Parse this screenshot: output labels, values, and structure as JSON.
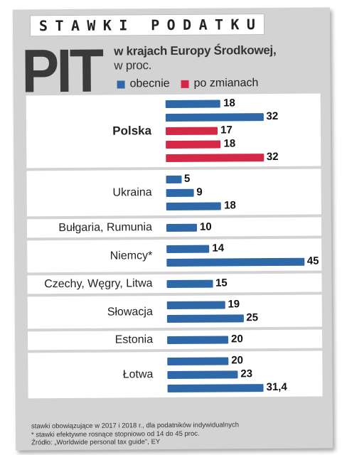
{
  "kicker": "STAWKI PODATKU",
  "kicker_words": [
    "S",
    "T",
    "A",
    "W",
    "K",
    "I",
    "",
    "P",
    "O",
    "D",
    "A",
    "T",
    "K",
    "U"
  ],
  "header": {
    "big_title": "PIT",
    "subtitle_bold": "w krajach Europy Środkowej,",
    "subtitle_normal": "w proc."
  },
  "legend": [
    {
      "label": "obecnie",
      "color": "#2e68a8"
    },
    {
      "label": "po zmianach",
      "color": "#d72746"
    }
  ],
  "chart_data": {
    "type": "bar",
    "orientation": "horizontal",
    "title": "PIT w krajach Europy Środkowej, w proc.",
    "groups": [
      {
        "label": "Polska",
        "bold": true,
        "bars": [
          {
            "value": 18,
            "label": "18",
            "series": "obecnie"
          },
          {
            "value": 32,
            "label": "32",
            "series": "obecnie"
          },
          {
            "value": 17,
            "label": "17",
            "series": "po zmianach"
          },
          {
            "value": 18,
            "label": "18",
            "series": "po zmianach"
          },
          {
            "value": 32,
            "label": "32",
            "series": "po zmianach"
          }
        ]
      },
      {
        "label": "Ukraina",
        "bars": [
          {
            "value": 5,
            "label": "5",
            "series": "obecnie"
          },
          {
            "value": 9,
            "label": "9",
            "series": "obecnie"
          },
          {
            "value": 18,
            "label": "18",
            "series": "obecnie"
          }
        ]
      },
      {
        "label": "Bułgaria, Rumunia",
        "bars": [
          {
            "value": 10,
            "label": "10",
            "series": "obecnie"
          }
        ]
      },
      {
        "label": "Niemcy*",
        "bars": [
          {
            "value": 14,
            "label": "14",
            "series": "obecnie"
          },
          {
            "value": 45,
            "label": "45",
            "series": "obecnie"
          }
        ]
      },
      {
        "label": "Czechy, Węgry, Litwa",
        "bars": [
          {
            "value": 15,
            "label": "15",
            "series": "obecnie"
          }
        ]
      },
      {
        "label": "Słowacja",
        "bars": [
          {
            "value": 19,
            "label": "19",
            "series": "obecnie"
          },
          {
            "value": 25,
            "label": "25",
            "series": "obecnie"
          }
        ]
      },
      {
        "label": "Estonia",
        "bars": [
          {
            "value": 20,
            "label": "20",
            "series": "obecnie"
          }
        ]
      },
      {
        "label": "Łotwa",
        "bars": [
          {
            "value": 20,
            "label": "20",
            "series": "obecnie"
          },
          {
            "value": 23,
            "label": "23",
            "series": "obecnie"
          },
          {
            "value": 31.4,
            "label": "31,4",
            "series": "obecnie"
          }
        ]
      }
    ],
    "xlim": [
      0,
      45
    ],
    "grid": false,
    "legend_position": "top"
  },
  "notes": [
    "stawki obowiązujące w 2017 i 2018 r., dla podatników indywidualnych",
    "* stawki efektywne rosnące stopniowo od 14 do 45 proc.",
    "Źródło: „Worldwide personal tax guide\", EY"
  ]
}
